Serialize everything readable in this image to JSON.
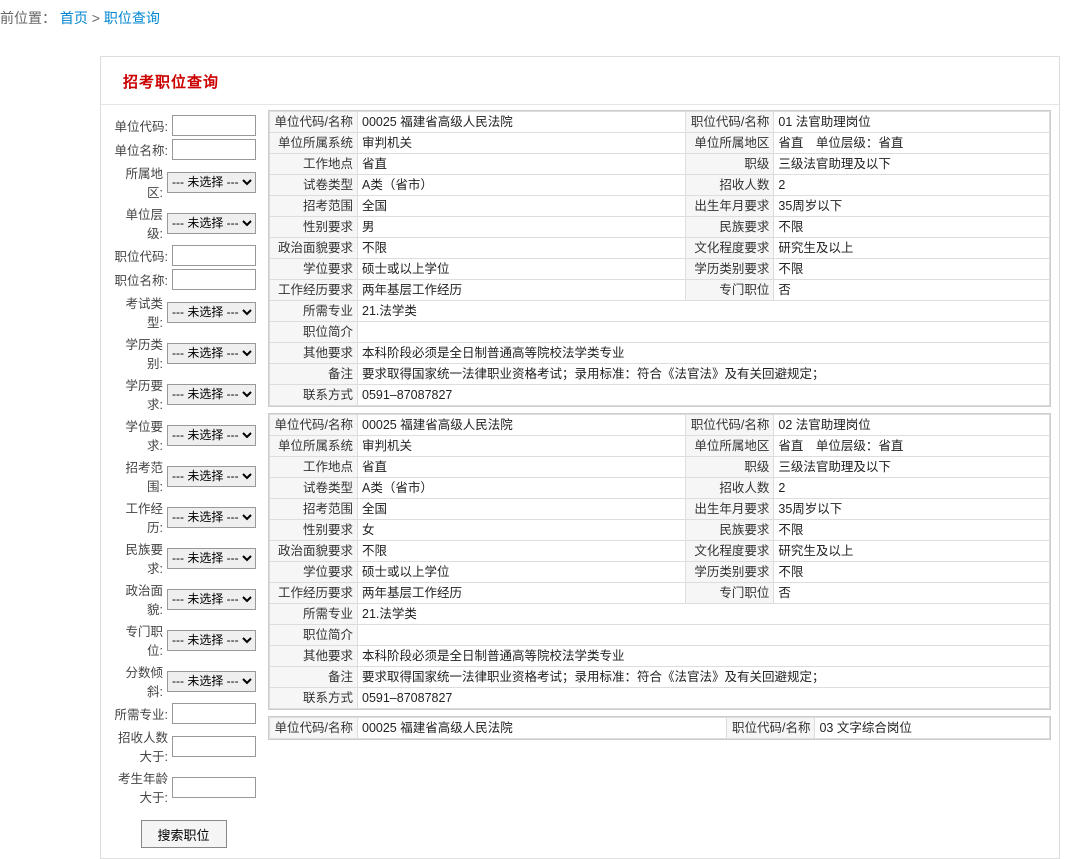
{
  "breadcrumb": {
    "prefix": "前位置：",
    "home": "首页",
    "sep": ">",
    "current": "职位查询"
  },
  "panel_title": "招考职位查询",
  "filters": [
    {
      "label": "单位代码:",
      "type": "text"
    },
    {
      "label": "单位名称:",
      "type": "text"
    },
    {
      "label": "所属地区:",
      "type": "select",
      "value": "--- 未选择 ---"
    },
    {
      "label": "单位层级:",
      "type": "select",
      "value": "--- 未选择 ---"
    },
    {
      "label": "职位代码:",
      "type": "text"
    },
    {
      "label": "职位名称:",
      "type": "text"
    },
    {
      "label": "考试类型:",
      "type": "select",
      "value": "--- 未选择 ---"
    },
    {
      "label": "学历类别:",
      "type": "select",
      "value": "--- 未选择 ---"
    },
    {
      "label": "学历要求:",
      "type": "select",
      "value": "--- 未选择 ---"
    },
    {
      "label": "学位要求:",
      "type": "select",
      "value": "--- 未选择 ---"
    },
    {
      "label": "招考范围:",
      "type": "select",
      "value": "--- 未选择 ---"
    },
    {
      "label": "工作经历:",
      "type": "select",
      "value": "--- 未选择 ---"
    },
    {
      "label": "民族要求:",
      "type": "select",
      "value": "--- 未选择 ---"
    },
    {
      "label": "政治面貌:",
      "type": "select",
      "value": "--- 未选择 ---"
    },
    {
      "label": "专门职位:",
      "type": "select",
      "value": "--- 未选择 ---"
    },
    {
      "label": "分数倾斜:",
      "type": "select",
      "value": "--- 未选择 ---"
    },
    {
      "label": "所需专业:",
      "type": "text"
    },
    {
      "label": "招收人数大于:",
      "type": "text"
    },
    {
      "label": "考生年龄大于:",
      "type": "text"
    }
  ],
  "search_btn": "搜索职位",
  "labels": {
    "unit_code_name": "单位代码/名称",
    "pos_code_name": "职位代码/名称",
    "unit_system": "单位所属系统",
    "unit_region": "单位所属地区",
    "unit_level_lbl": "单位层级：",
    "work_location": "工作地点",
    "rank": "职级",
    "paper_type": "试卷类型",
    "recruit_count": "招收人数",
    "recruit_scope": "招考范围",
    "birth_req": "出生年月要求",
    "gender_req": "性别要求",
    "ethnic_req": "民族要求",
    "politics_req": "政治面貌要求",
    "edu_level_req": "文化程度要求",
    "degree_req": "学位要求",
    "edu_cat_req": "学历类别要求",
    "work_exp_req": "工作经历要求",
    "special_pos": "专门职位",
    "major_req": "所需专业",
    "pos_desc": "职位简介",
    "other_req": "其他要求",
    "remark": "备注",
    "contact": "联系方式"
  },
  "postings": [
    {
      "unit": "00025 福建省高级人民法院",
      "pos": "01 法官助理岗位",
      "system": "审判机关",
      "region": "省直",
      "unit_level": "省直",
      "location": "省直",
      "rank": "三级法官助理及以下",
      "paper": "A类（省市）",
      "count": "2",
      "scope": "全国",
      "birth": "35周岁以下",
      "gender": "男",
      "ethnic": "不限",
      "politics": "不限",
      "edu_level": "研究生及以上",
      "degree": "硕士或以上学位",
      "edu_cat": "不限",
      "work_exp": "两年基层工作经历",
      "special": "否",
      "major": "21.法学类",
      "desc": "",
      "other": "本科阶段必须是全日制普通高等院校法学类专业",
      "remark": "要求取得国家统一法律职业资格考试；录用标准：符合《法官法》及有关回避规定；",
      "contact": "0591–87087827"
    },
    {
      "unit": "00025 福建省高级人民法院",
      "pos": "02 法官助理岗位",
      "system": "审判机关",
      "region": "省直",
      "unit_level": "省直",
      "location": "省直",
      "rank": "三级法官助理及以下",
      "paper": "A类（省市）",
      "count": "2",
      "scope": "全国",
      "birth": "35周岁以下",
      "gender": "女",
      "ethnic": "不限",
      "politics": "不限",
      "edu_level": "研究生及以上",
      "degree": "硕士或以上学位",
      "edu_cat": "不限",
      "work_exp": "两年基层工作经历",
      "special": "否",
      "major": "21.法学类",
      "desc": "",
      "other": "本科阶段必须是全日制普通高等院校法学类专业",
      "remark": "要求取得国家统一法律职业资格考试；录用标准：符合《法官法》及有关回避规定；",
      "contact": "0591–87087827"
    }
  ],
  "posting_partial": {
    "unit": "00025 福建省高级人民法院",
    "pos": "03 文字综合岗位"
  }
}
